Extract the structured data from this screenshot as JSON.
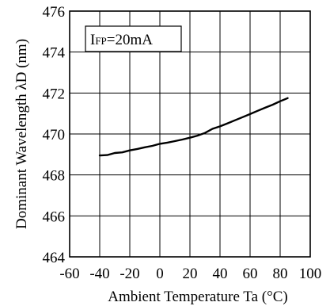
{
  "chart_data": {
    "type": "line",
    "xlabel": "Ambient Temperature Ta (°C)",
    "ylabel": "Dominant Wavelength λD (nm)",
    "xlim": [
      -60,
      100
    ],
    "ylim": [
      464,
      476
    ],
    "xticks": [
      -60,
      -40,
      -20,
      0,
      20,
      40,
      60,
      80,
      100
    ],
    "yticks": [
      464,
      466,
      468,
      470,
      472,
      474,
      476
    ],
    "grid": true,
    "annotation": {
      "prefix": "I",
      "subscript": "FP",
      "suffix": "=20mA"
    },
    "series": [
      {
        "x": [
          -40,
          -35,
          -30,
          -25,
          -20,
          -15,
          -10,
          -5,
          0,
          5,
          10,
          15,
          20,
          25,
          30,
          35,
          40,
          45,
          50,
          55,
          60,
          65,
          70,
          75,
          80,
          85
        ],
        "y": [
          468.95,
          468.97,
          469.07,
          469.1,
          469.2,
          469.27,
          469.35,
          469.42,
          469.52,
          469.58,
          469.65,
          469.73,
          469.82,
          469.92,
          470.05,
          470.25,
          470.37,
          470.52,
          470.67,
          470.82,
          470.97,
          471.13,
          471.28,
          471.43,
          471.6,
          471.75
        ]
      }
    ]
  }
}
